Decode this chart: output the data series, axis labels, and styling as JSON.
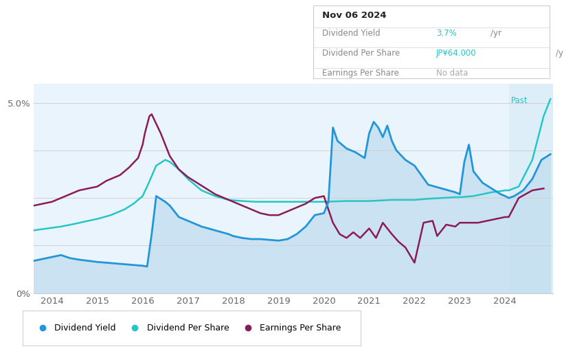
{
  "colors": {
    "dividend_yield": "#2196d8",
    "dividend_per_share": "#26c6c6",
    "earnings_per_share": "#8b1a5a",
    "background": "#ffffff",
    "fill_main": "#cfe5f5",
    "fill_past": "#daeef8",
    "grid": "#e0e0e0",
    "past_label": "#26c6c6",
    "tick_color": "#666666"
  },
  "info_box": {
    "date": "Nov 06 2024",
    "rows": [
      {
        "label": "Dividend Yield",
        "value": "3.7%",
        "unit": "/yr",
        "value_color": "#26c6c6"
      },
      {
        "label": "Dividend Per Share",
        "value": "JP¥64.000",
        "unit": "/yr",
        "value_color": "#26c6c6"
      },
      {
        "label": "Earnings Per Share",
        "value": "No data",
        "unit": "",
        "value_color": "#aaaaaa"
      }
    ]
  },
  "legend": [
    {
      "label": "Dividend Yield",
      "color": "#2196d8"
    },
    {
      "label": "Dividend Per Share",
      "color": "#26c6c6"
    },
    {
      "label": "Earnings Per Share",
      "color": "#8b1a5a"
    }
  ],
  "x_min": 2013.6,
  "x_max": 2025.05,
  "past_x": 2024.08,
  "y_min": 0,
  "y_max": 5.5,
  "yticks": [
    0,
    5.0
  ],
  "ytick_labels": [
    "0%",
    "5.0%"
  ],
  "xticks": [
    2014,
    2015,
    2016,
    2017,
    2018,
    2019,
    2020,
    2021,
    2022,
    2023,
    2024
  ],
  "div_yield_x": [
    2013.6,
    2013.8,
    2014.0,
    2014.2,
    2014.4,
    2014.6,
    2014.8,
    2015.0,
    2015.2,
    2015.4,
    2015.6,
    2015.8,
    2016.0,
    2016.1,
    2016.2,
    2016.3,
    2016.5,
    2016.6,
    2016.8,
    2017.0,
    2017.3,
    2017.6,
    2017.9,
    2018.0,
    2018.2,
    2018.4,
    2018.6,
    2018.8,
    2019.0,
    2019.2,
    2019.4,
    2019.6,
    2019.8,
    2020.0,
    2020.1,
    2020.2,
    2020.3,
    2020.5,
    2020.7,
    2020.9,
    2021.0,
    2021.1,
    2021.2,
    2021.3,
    2021.4,
    2021.5,
    2021.6,
    2021.8,
    2022.0,
    2022.3,
    2022.6,
    2022.9,
    2023.0,
    2023.1,
    2023.2,
    2023.3,
    2023.5,
    2023.7,
    2023.9,
    2024.0,
    2024.08,
    2024.2,
    2024.4,
    2024.6,
    2024.8,
    2025.0
  ],
  "div_yield_y": [
    0.85,
    0.9,
    0.95,
    1.0,
    0.92,
    0.88,
    0.85,
    0.82,
    0.8,
    0.78,
    0.76,
    0.74,
    0.72,
    0.7,
    1.55,
    2.55,
    2.4,
    2.3,
    2.0,
    1.9,
    1.75,
    1.65,
    1.55,
    1.5,
    1.45,
    1.42,
    1.42,
    1.4,
    1.38,
    1.42,
    1.55,
    1.75,
    2.05,
    2.1,
    2.4,
    4.35,
    4.0,
    3.8,
    3.7,
    3.55,
    4.2,
    4.5,
    4.35,
    4.1,
    4.4,
    4.0,
    3.75,
    3.5,
    3.35,
    2.85,
    2.75,
    2.65,
    2.6,
    3.45,
    3.9,
    3.2,
    2.9,
    2.75,
    2.6,
    2.55,
    2.5,
    2.55,
    2.7,
    3.0,
    3.5,
    3.65
  ],
  "div_per_share_x": [
    2013.6,
    2013.9,
    2014.2,
    2014.5,
    2014.8,
    2015.0,
    2015.3,
    2015.6,
    2015.8,
    2016.0,
    2016.1,
    2016.3,
    2016.5,
    2016.6,
    2016.8,
    2017.0,
    2017.3,
    2017.6,
    2017.9,
    2018.2,
    2018.5,
    2018.8,
    2019.0,
    2019.5,
    2020.0,
    2020.5,
    2021.0,
    2021.5,
    2022.0,
    2022.3,
    2022.6,
    2022.9,
    2023.0,
    2023.3,
    2023.5,
    2023.7,
    2023.9,
    2024.0,
    2024.08,
    2024.3,
    2024.6,
    2024.85,
    2025.0
  ],
  "div_per_share_y": [
    1.65,
    1.7,
    1.75,
    1.82,
    1.9,
    1.95,
    2.05,
    2.2,
    2.35,
    2.55,
    2.8,
    3.35,
    3.5,
    3.45,
    3.25,
    3.0,
    2.7,
    2.55,
    2.45,
    2.42,
    2.4,
    2.4,
    2.4,
    2.4,
    2.4,
    2.42,
    2.42,
    2.45,
    2.45,
    2.48,
    2.5,
    2.52,
    2.52,
    2.55,
    2.6,
    2.65,
    2.68,
    2.7,
    2.7,
    2.8,
    3.5,
    4.65,
    5.1
  ],
  "earn_per_share_x": [
    2013.6,
    2013.8,
    2014.0,
    2014.2,
    2014.4,
    2014.6,
    2014.8,
    2015.0,
    2015.2,
    2015.5,
    2015.7,
    2015.9,
    2016.0,
    2016.05,
    2016.15,
    2016.2,
    2016.4,
    2016.6,
    2016.8,
    2017.0,
    2017.2,
    2017.4,
    2017.6,
    2017.8,
    2018.0,
    2018.2,
    2018.4,
    2018.5,
    2018.6,
    2018.8,
    2019.0,
    2019.2,
    2019.4,
    2019.6,
    2019.8,
    2020.0,
    2020.2,
    2020.35,
    2020.5,
    2020.65,
    2020.8,
    2021.0,
    2021.15,
    2021.3,
    2021.5,
    2021.65,
    2021.8,
    2022.0,
    2022.2,
    2022.4,
    2022.5,
    2022.7,
    2022.9,
    2023.0,
    2023.2,
    2023.4,
    2023.6,
    2023.8,
    2024.0,
    2024.08,
    2024.3,
    2024.6,
    2024.85
  ],
  "earn_per_share_y": [
    2.3,
    2.35,
    2.4,
    2.5,
    2.6,
    2.7,
    2.75,
    2.8,
    2.95,
    3.1,
    3.3,
    3.55,
    3.9,
    4.2,
    4.65,
    4.7,
    4.2,
    3.6,
    3.25,
    3.05,
    2.9,
    2.75,
    2.6,
    2.5,
    2.4,
    2.3,
    2.2,
    2.15,
    2.1,
    2.05,
    2.05,
    2.15,
    2.25,
    2.35,
    2.5,
    2.55,
    1.85,
    1.55,
    1.45,
    1.6,
    1.45,
    1.7,
    1.45,
    1.85,
    1.55,
    1.35,
    1.2,
    0.8,
    1.85,
    1.9,
    1.5,
    1.8,
    1.75,
    1.85,
    1.85,
    1.85,
    1.9,
    1.95,
    2.0,
    2.0,
    2.5,
    2.7,
    2.75
  ]
}
